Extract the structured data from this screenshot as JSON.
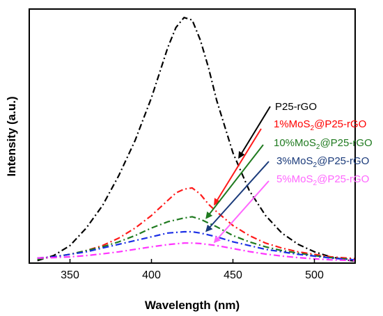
{
  "chart_data": {
    "type": "line",
    "xlabel": "Wavelength (nm)",
    "ylabel": "Intensity (a.u.)",
    "xlim": [
      325,
      525
    ],
    "ylim": [
      0,
      1.0
    ],
    "x_ticks": [
      350,
      400,
      450,
      500
    ],
    "y_ticks_shown": false,
    "grid": false,
    "legend_placement": "right, annotated with arrows",
    "series": [
      {
        "name": "P25-rGO",
        "color": "#000000",
        "dash": "dash-dot",
        "x": [
          330,
          340,
          350,
          360,
          370,
          380,
          390,
          400,
          405,
          410,
          415,
          420,
          425,
          430,
          435,
          440,
          450,
          460,
          470,
          480,
          490,
          500,
          510,
          520,
          525
        ],
        "y": [
          0.01,
          0.03,
          0.07,
          0.14,
          0.23,
          0.35,
          0.49,
          0.66,
          0.76,
          0.86,
          0.94,
          0.98,
          0.97,
          0.89,
          0.78,
          0.65,
          0.44,
          0.29,
          0.19,
          0.12,
          0.075,
          0.045,
          0.025,
          0.012,
          0.008
        ]
      },
      {
        "name": "1%MoS2@P25-rGO",
        "color": "#ff1a1a",
        "dash": "dash-dot",
        "x": [
          330,
          340,
          350,
          360,
          370,
          380,
          390,
          400,
          410,
          415,
          420,
          425,
          430,
          435,
          440,
          450,
          460,
          470,
          480,
          490,
          500,
          510,
          520,
          525
        ],
        "y": [
          0.02,
          0.025,
          0.035,
          0.05,
          0.07,
          0.1,
          0.14,
          0.19,
          0.25,
          0.28,
          0.295,
          0.3,
          0.275,
          0.235,
          0.205,
          0.15,
          0.11,
          0.08,
          0.06,
          0.045,
          0.035,
          0.025,
          0.02,
          0.018
        ]
      },
      {
        "name": "10%MoS2@P25-rGO",
        "color": "#1f7a1f",
        "dash": "dash-dot",
        "x": [
          330,
          340,
          350,
          360,
          370,
          380,
          390,
          400,
          410,
          420,
          425,
          430,
          440,
          450,
          460,
          470,
          480,
          490,
          500,
          510,
          520,
          525
        ],
        "y": [
          0.015,
          0.025,
          0.035,
          0.05,
          0.065,
          0.085,
          0.11,
          0.14,
          0.165,
          0.18,
          0.185,
          0.175,
          0.145,
          0.11,
          0.085,
          0.065,
          0.05,
          0.04,
          0.03,
          0.022,
          0.016,
          0.014
        ]
      },
      {
        "name": "3%MoS2@P25-rGO",
        "color": "#1a2ee6",
        "dash": "dash-dot",
        "x": [
          330,
          340,
          350,
          360,
          370,
          380,
          390,
          400,
          410,
          420,
          425,
          430,
          440,
          450,
          460,
          470,
          480,
          490,
          500,
          510,
          520,
          525
        ],
        "y": [
          0.02,
          0.025,
          0.035,
          0.045,
          0.06,
          0.075,
          0.09,
          0.105,
          0.12,
          0.125,
          0.125,
          0.12,
          0.105,
          0.085,
          0.07,
          0.055,
          0.045,
          0.035,
          0.028,
          0.02,
          0.015,
          0.013
        ]
      },
      {
        "name": "5%MoS2@P25-rGO",
        "color": "#ff33ff",
        "dash": "dash-dot",
        "x": [
          330,
          340,
          350,
          360,
          370,
          380,
          390,
          400,
          410,
          420,
          425,
          430,
          440,
          450,
          460,
          470,
          480,
          490,
          500,
          510,
          520,
          525
        ],
        "y": [
          0.02,
          0.022,
          0.025,
          0.03,
          0.037,
          0.045,
          0.055,
          0.065,
          0.074,
          0.08,
          0.08,
          0.078,
          0.07,
          0.058,
          0.046,
          0.036,
          0.028,
          0.022,
          0.017,
          0.013,
          0.011,
          0.01
        ]
      }
    ],
    "legend": [
      {
        "prefix": "P25-rGO",
        "sub": "",
        "suffix": "",
        "color": "#000000",
        "arrow_color": "#000000"
      },
      {
        "prefix": "1%MoS",
        "sub": "2",
        "suffix": "@P25-rGO",
        "color": "#ff0000",
        "arrow_color": "#ff1a1a"
      },
      {
        "prefix": "10%MoS",
        "sub": "2",
        "suffix": "@P25-rGO",
        "color": "#1f7a1f",
        "arrow_color": "#1f7a1f"
      },
      {
        "prefix": "3%MoS",
        "sub": "2",
        "suffix": "@P25-rGO",
        "color": "#1a3a7a",
        "arrow_color": "#1a3a7a"
      },
      {
        "prefix": "5%MoS",
        "sub": "2",
        "suffix": "@P25-rGO",
        "color": "#ff66ff",
        "arrow_color": "#ff66ff"
      }
    ]
  }
}
